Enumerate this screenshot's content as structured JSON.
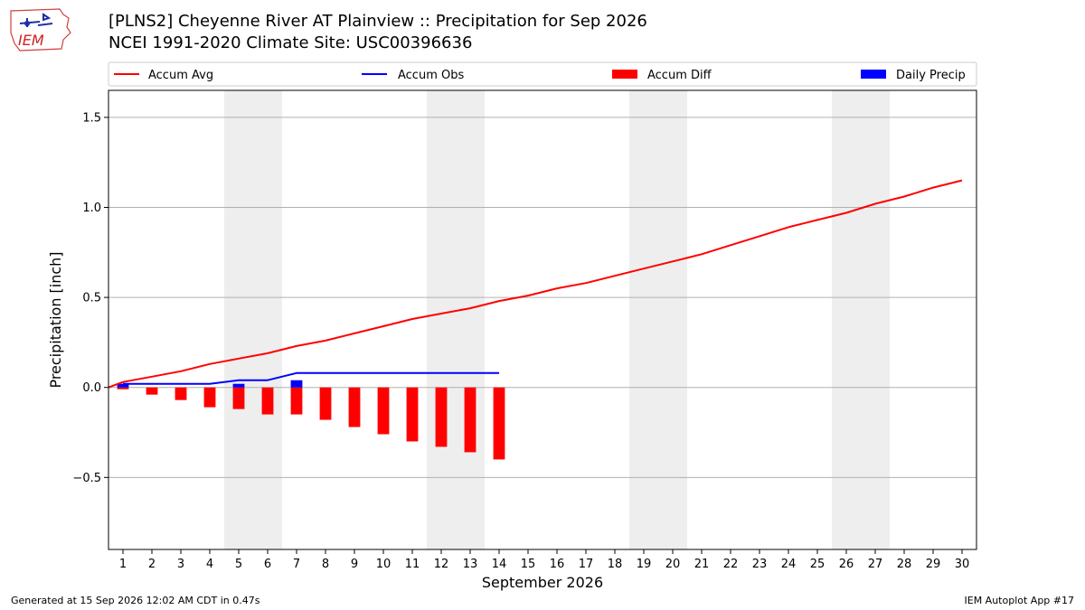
{
  "header": {
    "title": "[PLNS2] Cheyenne River  AT Plainview :: Precipitation for Sep 2026",
    "subtitle": "NCEI 1991-2020 Climate Site: USC00396636",
    "logo_text": "IEM"
  },
  "footer": {
    "left": "Generated at 15 Sep 2026 12:02 AM CDT in 0.47s",
    "right": "IEM Autoplot App #17"
  },
  "colors": {
    "avg": "#ff0000",
    "obs": "#0000ff",
    "diff": "#ff0000",
    "daily": "#0000ff",
    "weekend_band": "#eeeeee",
    "grid": "#b0b0b0"
  },
  "chart_data": {
    "type": "line",
    "title": "[PLNS2] Cheyenne River  AT Plainview :: Precipitation for Sep 2026",
    "xlabel": "September 2026",
    "ylabel": "Precipitation [inch]",
    "xlim": [
      0.5,
      30.5
    ],
    "ylim": [
      -0.9,
      1.65
    ],
    "yticks": [
      -0.5,
      0.0,
      0.5,
      1.0,
      1.5
    ],
    "ytick_labels": [
      "−0.5",
      "0.0",
      "0.5",
      "1.0",
      "1.5"
    ],
    "x": [
      1,
      2,
      3,
      4,
      5,
      6,
      7,
      8,
      9,
      10,
      11,
      12,
      13,
      14,
      15,
      16,
      17,
      18,
      19,
      20,
      21,
      22,
      23,
      24,
      25,
      26,
      27,
      28,
      29,
      30
    ],
    "grid": "horizontal",
    "legend_position": "top (above plot, horizontal)",
    "shaded_weekends": [
      [
        4.5,
        6.5
      ],
      [
        11.5,
        13.5
      ],
      [
        18.5,
        20.5
      ],
      [
        25.5,
        27.5
      ]
    ],
    "legend": [
      "Accum Avg",
      "Accum Obs",
      "Accum Diff",
      "Daily Precip"
    ],
    "series": [
      {
        "name": "Accum Avg",
        "kind": "line",
        "x": [
          0.5,
          1,
          2,
          3,
          4,
          5,
          6,
          7,
          8,
          9,
          10,
          11,
          12,
          13,
          14,
          15,
          16,
          17,
          18,
          19,
          20,
          21,
          22,
          23,
          24,
          25,
          26,
          27,
          28,
          29,
          30
        ],
        "values": [
          0,
          0.03,
          0.06,
          0.09,
          0.13,
          0.16,
          0.19,
          0.23,
          0.26,
          0.3,
          0.34,
          0.38,
          0.41,
          0.44,
          0.48,
          0.51,
          0.55,
          0.58,
          0.62,
          0.66,
          0.7,
          0.74,
          0.79,
          0.84,
          0.89,
          0.93,
          0.97,
          1.02,
          1.06,
          1.11,
          1.15
        ]
      },
      {
        "name": "Accum Obs",
        "kind": "line",
        "x": [
          1,
          2,
          3,
          4,
          5,
          6,
          7,
          8,
          9,
          10,
          11,
          12,
          13,
          14
        ],
        "values": [
          0.02,
          0.02,
          0.02,
          0.02,
          0.04,
          0.04,
          0.08,
          0.08,
          0.08,
          0.08,
          0.08,
          0.08,
          0.08,
          0.08
        ]
      },
      {
        "name": "Accum Diff",
        "kind": "bar",
        "x": [
          1,
          2,
          3,
          4,
          5,
          6,
          7,
          8,
          9,
          10,
          11,
          12,
          13,
          14
        ],
        "values": [
          -0.01,
          -0.04,
          -0.07,
          -0.11,
          -0.12,
          -0.15,
          -0.15,
          -0.18,
          -0.22,
          -0.26,
          -0.3,
          -0.33,
          -0.36,
          -0.4
        ]
      },
      {
        "name": "Daily Precip",
        "kind": "bar",
        "x": [
          1,
          5,
          7
        ],
        "values": [
          0.02,
          0.02,
          0.04
        ]
      }
    ]
  }
}
